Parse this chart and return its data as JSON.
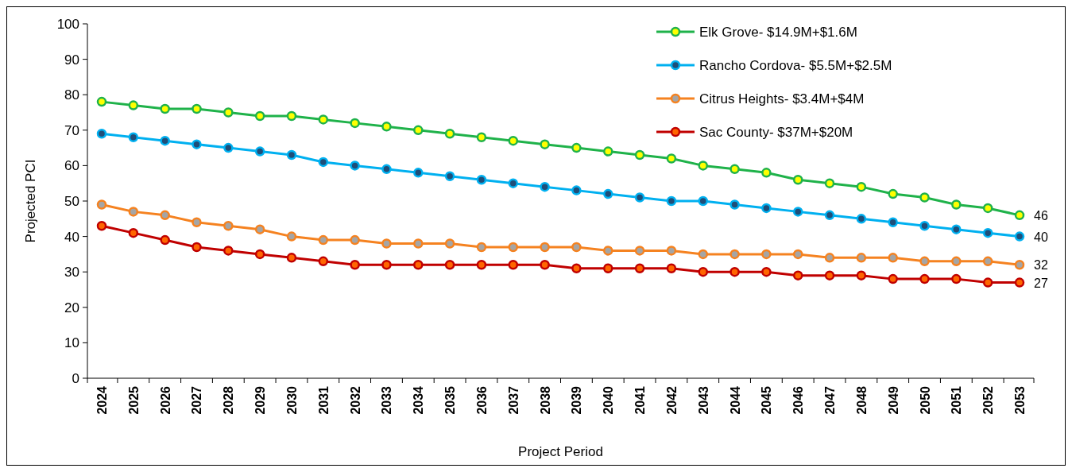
{
  "chart_data": {
    "type": "line",
    "xlabel": "Project Period",
    "ylabel": "Projected PCI",
    "categories": [
      "2024",
      "2025",
      "2026",
      "2027",
      "2028",
      "2029",
      "2030",
      "2031",
      "2032",
      "2033",
      "2034",
      "2035",
      "2036",
      "2037",
      "2038",
      "2039",
      "2040",
      "2041",
      "2042",
      "2043",
      "2044",
      "2045",
      "2046",
      "2047",
      "2048",
      "2049",
      "2050",
      "2051",
      "2052",
      "2053"
    ],
    "ylim": [
      0,
      100
    ],
    "yticks": [
      0,
      10,
      20,
      30,
      40,
      50,
      60,
      70,
      80,
      90,
      100
    ],
    "grid": false,
    "legend": "top right",
    "marker": "circle",
    "line_style": "solid",
    "series": [
      {
        "name": "Elk Grove- $14.9M+$1.6M",
        "color": "#1fb24a",
        "values": [
          78,
          77,
          76,
          76,
          75,
          74,
          74,
          73,
          72,
          71,
          70,
          69,
          68,
          67,
          66,
          65,
          64,
          63,
          62,
          60,
          59,
          58,
          56,
          55,
          54,
          52,
          51,
          49,
          48,
          46
        ],
        "value_labels": [
          null,
          null,
          null,
          null,
          null,
          null,
          null,
          null,
          null,
          null,
          null,
          null,
          null,
          null,
          null,
          null,
          null,
          null,
          null,
          null,
          null,
          null,
          null,
          null,
          null,
          null,
          null,
          null,
          null,
          "46"
        ]
      },
      {
        "name": "Rancho Cordova- $5.5M+$2.5M",
        "color": "#00b0f0",
        "values": [
          69,
          68,
          67,
          66,
          65,
          64,
          63,
          61,
          60,
          59,
          58,
          57,
          56,
          55,
          54,
          53,
          52,
          51,
          50,
          50,
          49,
          48,
          47,
          46,
          45,
          44,
          43,
          42,
          41,
          40
        ],
        "value_labels": [
          null,
          null,
          null,
          null,
          null,
          null,
          null,
          null,
          null,
          null,
          null,
          null,
          null,
          null,
          null,
          null,
          null,
          null,
          null,
          null,
          null,
          null,
          null,
          null,
          null,
          null,
          null,
          null,
          null,
          "40"
        ]
      },
      {
        "name": "Citrus Heights- $3.4M+$4M",
        "color": "#f58220",
        "values": [
          49,
          47,
          46,
          44,
          43,
          42,
          40,
          39,
          39,
          38,
          38,
          38,
          37,
          37,
          37,
          37,
          36,
          36,
          36,
          35,
          35,
          35,
          35,
          34,
          34,
          34,
          33,
          33,
          33,
          32
        ],
        "value_labels": [
          null,
          null,
          null,
          null,
          null,
          null,
          null,
          null,
          null,
          null,
          null,
          null,
          null,
          null,
          null,
          null,
          null,
          null,
          null,
          null,
          null,
          null,
          null,
          null,
          null,
          null,
          null,
          null,
          null,
          "32"
        ]
      },
      {
        "name": "Sac County- $37M+$20M",
        "color": "#c00000",
        "values": [
          43,
          41,
          39,
          37,
          36,
          35,
          34,
          33,
          32,
          32,
          32,
          32,
          32,
          32,
          32,
          31,
          31,
          31,
          31,
          30,
          30,
          30,
          29,
          29,
          29,
          28,
          28,
          28,
          27,
          27
        ],
        "value_labels": [
          null,
          null,
          null,
          null,
          null,
          null,
          null,
          null,
          null,
          null,
          null,
          null,
          null,
          null,
          null,
          null,
          null,
          null,
          null,
          null,
          null,
          null,
          null,
          null,
          null,
          null,
          null,
          null,
          null,
          "27"
        ]
      }
    ]
  }
}
